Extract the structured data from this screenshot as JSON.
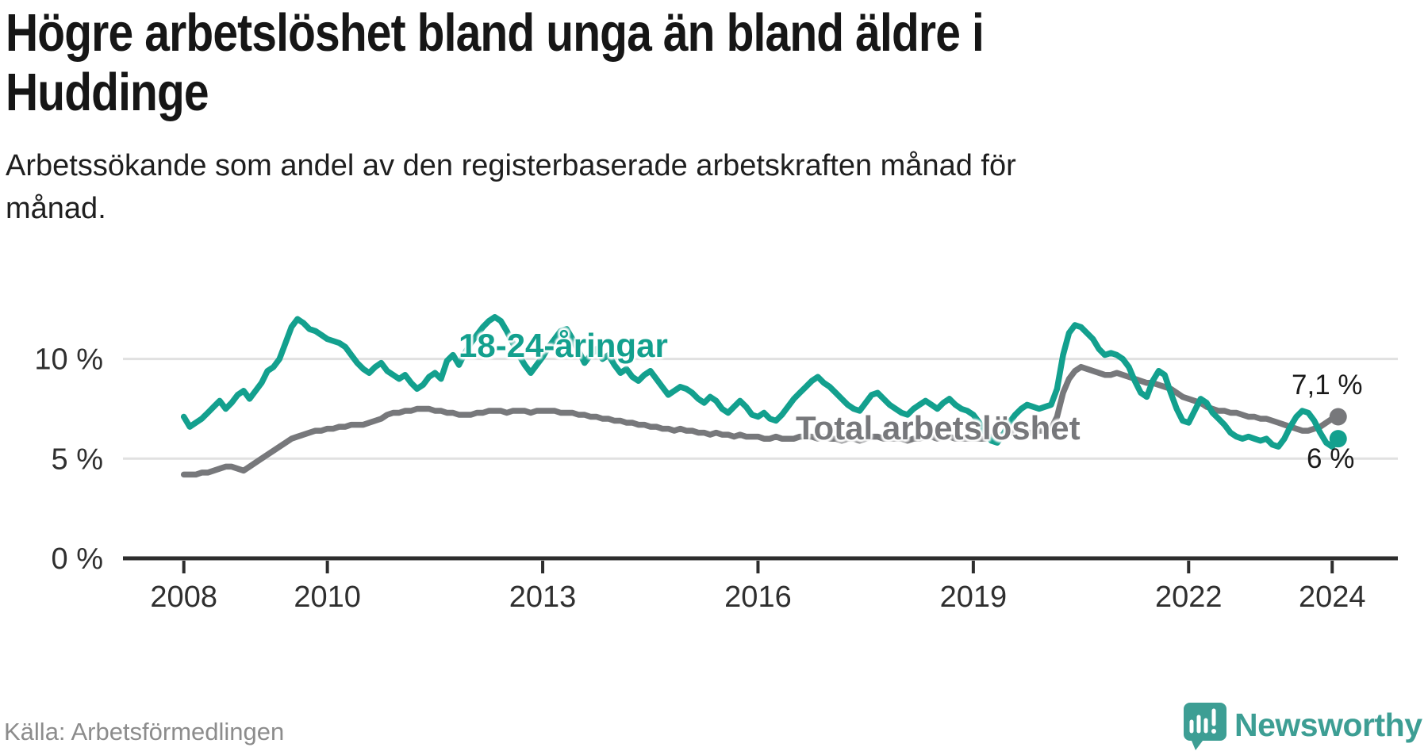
{
  "header": {
    "title_line1": "Högre arbetslöshet bland unga än bland äldre i",
    "title_line2": "Huddinge",
    "subtitle_line1": "Arbetssökande som andel av den registerbaserade arbetskraften månad för",
    "subtitle_line2": "månad."
  },
  "footer": {
    "source": "Källa: Arbetsförmedlingen",
    "brand": "Newsworthy"
  },
  "colors": {
    "youth_line": "#13a08e",
    "total_line": "#77787b",
    "grid": "#e1e1e1",
    "axis": "#2d2d2d",
    "tick_text": "#2f2f2f",
    "brand_teal": "#3d9e94"
  },
  "chart_data": {
    "type": "line",
    "title": "Högre arbetslöshet bland unga än bland äldre i Huddinge",
    "subtitle": "Arbetssökande som andel av den registerbaserade arbetskraften månad för månad.",
    "xlabel": "",
    "ylabel": "",
    "x_start_year": 2008,
    "x_step": "1 month",
    "x_end": "2024-02",
    "xlim": [
      2007.15,
      2024.92
    ],
    "ylim": [
      0,
      12.9
    ],
    "grid": "horizontal-only",
    "x_tick_years": [
      2008,
      2010,
      2013,
      2016,
      2019,
      2022,
      2024
    ],
    "y_ticks": [
      {
        "value": 0,
        "label": "0 %"
      },
      {
        "value": 5,
        "label": "5 %"
      },
      {
        "value": 10,
        "label": "10 %"
      }
    ],
    "series": [
      {
        "name": "Total arbetslöshet",
        "color": "#77787b",
        "end_label": "7,1 %",
        "end_value": 7.1,
        "values": [
          4.2,
          4.2,
          4.2,
          4.3,
          4.3,
          4.4,
          4.5,
          4.6,
          4.6,
          4.5,
          4.4,
          4.6,
          4.8,
          5.0,
          5.2,
          5.4,
          5.6,
          5.8,
          6.0,
          6.1,
          6.2,
          6.3,
          6.4,
          6.4,
          6.5,
          6.5,
          6.6,
          6.6,
          6.7,
          6.7,
          6.7,
          6.8,
          6.9,
          7.0,
          7.2,
          7.3,
          7.3,
          7.4,
          7.4,
          7.5,
          7.5,
          7.5,
          7.4,
          7.4,
          7.3,
          7.3,
          7.2,
          7.2,
          7.2,
          7.3,
          7.3,
          7.4,
          7.4,
          7.4,
          7.3,
          7.4,
          7.4,
          7.4,
          7.3,
          7.4,
          7.4,
          7.4,
          7.4,
          7.3,
          7.3,
          7.3,
          7.2,
          7.2,
          7.1,
          7.1,
          7.0,
          7.0,
          6.9,
          6.9,
          6.8,
          6.8,
          6.7,
          6.7,
          6.6,
          6.6,
          6.5,
          6.5,
          6.4,
          6.5,
          6.4,
          6.4,
          6.3,
          6.3,
          6.2,
          6.3,
          6.2,
          6.2,
          6.1,
          6.2,
          6.1,
          6.1,
          6.1,
          6.0,
          6.0,
          6.1,
          6.0,
          6.0,
          6.0,
          6.1,
          6.1,
          6.1,
          6.0,
          6.1,
          6.0,
          6.0,
          5.9,
          6.0,
          6.0,
          5.9,
          6.0,
          6.1,
          6.1,
          6.0,
          6.0,
          6.0,
          6.0,
          5.9,
          6.0,
          6.0,
          6.1,
          6.1,
          6.0,
          6.1,
          6.1,
          6.0,
          6.0,
          6.0,
          6.0,
          6.0,
          6.0,
          6.1,
          6.1,
          6.2,
          6.3,
          6.3,
          6.2,
          6.3,
          6.3,
          6.4,
          6.4,
          6.5,
          7.1,
          8.3,
          9.0,
          9.4,
          9.6,
          9.5,
          9.4,
          9.3,
          9.2,
          9.2,
          9.3,
          9.2,
          9.1,
          9.0,
          8.9,
          8.8,
          8.8,
          8.7,
          8.6,
          8.5,
          8.3,
          8.1,
          8.0,
          7.9,
          7.8,
          7.6,
          7.5,
          7.4,
          7.4,
          7.3,
          7.3,
          7.2,
          7.1,
          7.1,
          7.0,
          7.0,
          6.9,
          6.8,
          6.7,
          6.6,
          6.5,
          6.4,
          6.4,
          6.5,
          6.6,
          6.8,
          7.0,
          7.1
        ]
      },
      {
        "name": "18-24-åringar",
        "color": "#13a08e",
        "end_label": "6 %",
        "end_value": 6.0,
        "values": [
          7.1,
          6.6,
          6.8,
          7.0,
          7.3,
          7.6,
          7.9,
          7.5,
          7.8,
          8.2,
          8.4,
          8.0,
          8.4,
          8.8,
          9.4,
          9.6,
          10.0,
          10.8,
          11.6,
          12.0,
          11.8,
          11.5,
          11.4,
          11.2,
          11.0,
          10.9,
          10.8,
          10.6,
          10.2,
          9.8,
          9.5,
          9.3,
          9.6,
          9.8,
          9.4,
          9.2,
          9.0,
          9.2,
          8.8,
          8.5,
          8.7,
          9.1,
          9.3,
          9.0,
          9.9,
          10.2,
          9.7,
          10.3,
          10.8,
          11.2,
          11.6,
          11.9,
          12.1,
          11.9,
          11.4,
          10.8,
          10.2,
          9.7,
          9.3,
          9.7,
          10.1,
          10.6,
          11.0,
          11.4,
          11.5,
          11.0,
          10.4,
          9.8,
          10.2,
          10.5,
          10.0,
          10.2,
          9.7,
          9.3,
          9.5,
          9.1,
          8.9,
          9.2,
          9.4,
          9.0,
          8.6,
          8.2,
          8.4,
          8.6,
          8.5,
          8.3,
          8.0,
          7.8,
          8.1,
          7.9,
          7.5,
          7.3,
          7.6,
          7.9,
          7.6,
          7.2,
          7.1,
          7.3,
          7.0,
          6.9,
          7.2,
          7.6,
          8.0,
          8.3,
          8.6,
          8.9,
          9.1,
          8.8,
          8.6,
          8.3,
          8.0,
          7.7,
          7.5,
          7.4,
          7.8,
          8.2,
          8.3,
          8.0,
          7.7,
          7.5,
          7.3,
          7.2,
          7.5,
          7.7,
          7.9,
          7.7,
          7.5,
          7.8,
          8.0,
          7.7,
          7.5,
          7.4,
          7.2,
          6.8,
          6.3,
          5.9,
          5.8,
          6.2,
          6.8,
          7.2,
          7.5,
          7.7,
          7.6,
          7.5,
          7.6,
          7.7,
          8.5,
          10.2,
          11.3,
          11.7,
          11.6,
          11.3,
          11.0,
          10.5,
          10.2,
          10.3,
          10.2,
          10.0,
          9.6,
          8.9,
          8.3,
          8.1,
          8.9,
          9.4,
          9.2,
          8.3,
          7.5,
          6.9,
          6.8,
          7.4,
          8.0,
          7.8,
          7.3,
          7.0,
          6.7,
          6.3,
          6.1,
          6.0,
          6.1,
          6.0,
          5.9,
          6.0,
          5.7,
          5.6,
          6.0,
          6.6,
          7.1,
          7.4,
          7.3,
          6.9,
          6.3,
          5.8,
          5.6,
          6.0
        ]
      }
    ]
  }
}
